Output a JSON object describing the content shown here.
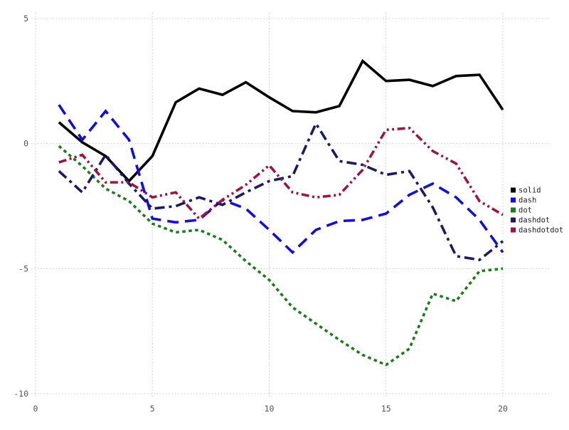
{
  "chart_data": {
    "type": "line",
    "title": "",
    "xlabel": "",
    "ylabel": "",
    "xlim": [
      0,
      20
    ],
    "ylim": [
      -10,
      5
    ],
    "xticks": [
      0,
      5,
      10,
      15,
      20
    ],
    "yticks": [
      5,
      0,
      -5,
      -10
    ],
    "grid": true,
    "grid_style": "dotted",
    "legend_position": "right",
    "x": [
      1,
      2,
      3,
      4,
      5,
      6,
      7,
      8,
      9,
      10,
      11,
      12,
      13,
      14,
      15,
      16,
      17,
      18,
      19,
      20
    ],
    "series": [
      {
        "name": "solid",
        "color": "#000000",
        "dash_style": "solid",
        "values": [
          0.85,
          0.05,
          -0.5,
          -1.5,
          -0.5,
          1.65,
          2.2,
          1.95,
          2.45,
          1.85,
          1.3,
          1.25,
          1.5,
          3.3,
          2.5,
          2.55,
          2.3,
          2.7,
          2.75,
          1.35
        ]
      },
      {
        "name": "dash",
        "color": "#0d0dee",
        "dash_style": "dash",
        "values": [
          1.55,
          0.15,
          1.3,
          0.15,
          -3.0,
          -3.15,
          -3.05,
          -2.25,
          -2.6,
          -3.45,
          -4.35,
          -3.45,
          -3.1,
          -3.05,
          -2.8,
          -2.05,
          -1.6,
          -2.15,
          -3.05,
          -4.35
        ]
      },
      {
        "name": "dot",
        "color": "#1a7e1a",
        "dash_style": "dot",
        "values": [
          -0.1,
          -0.9,
          -1.8,
          -2.3,
          -3.2,
          -3.55,
          -3.45,
          -3.85,
          -4.7,
          -5.45,
          -6.55,
          -7.2,
          -7.85,
          -8.45,
          -8.85,
          -8.2,
          -6.0,
          -6.3,
          -5.1,
          -5.0
        ]
      },
      {
        "name": "dashdot",
        "color": "#1a1a68",
        "dash_style": "dashdot",
        "values": [
          -1.1,
          -1.95,
          -0.45,
          -1.6,
          -2.6,
          -2.5,
          -2.15,
          -2.45,
          -1.95,
          -1.5,
          -1.3,
          0.8,
          -0.7,
          -0.85,
          -1.25,
          -1.1,
          -2.55,
          -4.5,
          -4.65,
          -3.9
        ]
      },
      {
        "name": "dashdotdot",
        "color": "#a11342",
        "dash_style": "dashdotdot",
        "values": [
          -0.75,
          -0.45,
          -1.55,
          -1.55,
          -2.15,
          -1.95,
          -3.0,
          -2.25,
          -1.65,
          -0.87,
          -1.95,
          -2.15,
          -2.05,
          -1.05,
          0.55,
          0.62,
          -0.3,
          -0.8,
          -2.3,
          -2.85
        ]
      }
    ],
    "legend_labels": [
      "solid",
      "dash",
      "dot",
      "dashdot",
      "dashdotdot"
    ],
    "tick_label_color": "#555555",
    "legend_text_color": "#222222",
    "gridline_color": "#c9c9c9"
  }
}
